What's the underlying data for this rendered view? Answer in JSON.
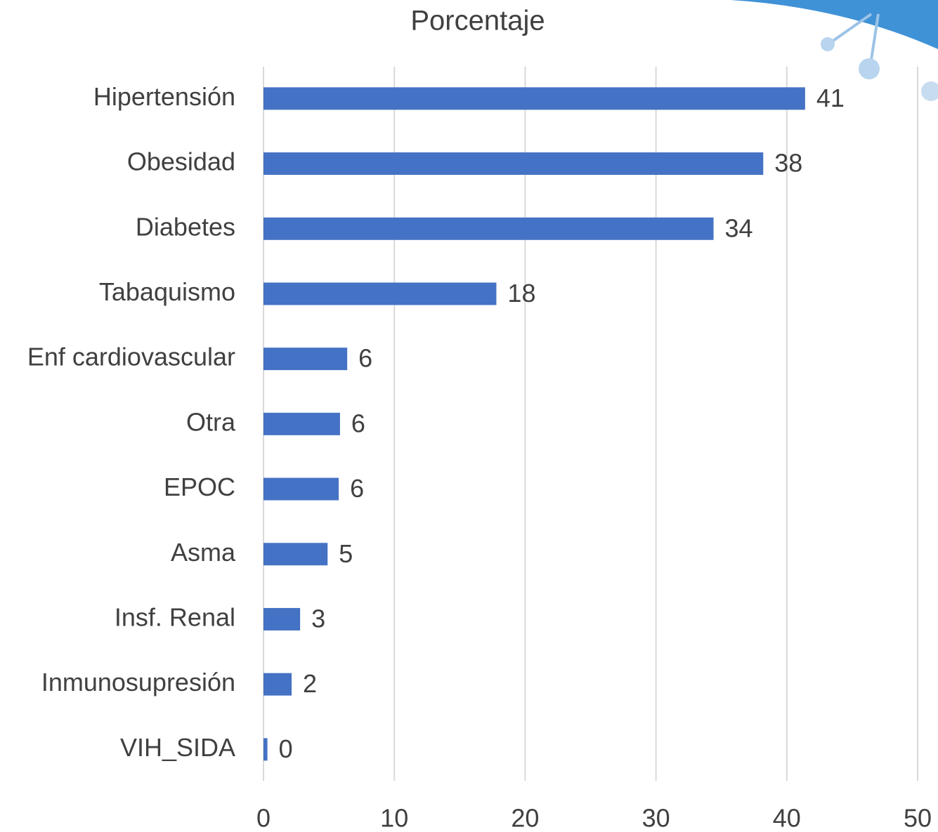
{
  "chart_data": {
    "type": "bar",
    "orientation": "horizontal",
    "title": "Porcentaje",
    "categories": [
      "Hipertensión",
      "Obesidad",
      "Diabetes",
      "Tabaquismo",
      "Enf cardiovascular",
      "Otra",
      "EPOC",
      "Asma",
      "Insf. Renal",
      "Inmunosupresión",
      "VIH_SIDA"
    ],
    "values": [
      41.4,
      38.2,
      34.4,
      17.8,
      6.4,
      5.85,
      5.75,
      4.9,
      2.8,
      2.15,
      0.3
    ],
    "value_labels": [
      "41",
      "38",
      "34",
      "18",
      "6",
      "6",
      "6",
      "5",
      "3",
      "2",
      "0"
    ],
    "color": "#4472c4",
    "xlim": [
      0,
      50
    ],
    "xticks": [
      0,
      10,
      20,
      30,
      40,
      50
    ],
    "grid": true
  }
}
